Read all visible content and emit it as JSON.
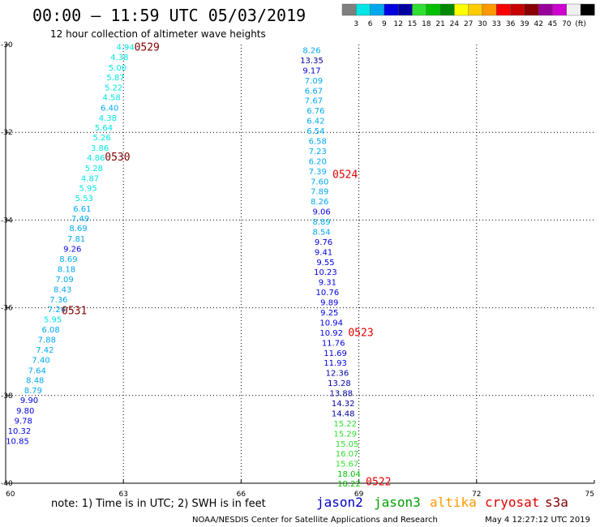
{
  "header": {
    "title": "00:00 – 11:59 UTC 05/03/2019",
    "subtitle": "12 hour collection of altimeter wave heights"
  },
  "color_scale": {
    "colors": [
      "#7f7f7f",
      "#00e5e5",
      "#00a8f0",
      "#0000e0",
      "#0000a0",
      "#30e030",
      "#00c000",
      "#008800",
      "#ffff00",
      "#ffcc00",
      "#ff9900",
      "#ff0000",
      "#c80000",
      "#880000",
      "#990099",
      "#d000d0",
      "#f0f0f0",
      "#000000"
    ],
    "labels": [
      "3",
      "6",
      "9",
      "12",
      "15",
      "18",
      "21",
      "24",
      "27",
      "30",
      "33",
      "36",
      "39",
      "42",
      "45",
      "70",
      "(ft)"
    ]
  },
  "footer": {
    "note": "note:  1) Time is in UTC; 2) SWH is in feet",
    "credit": "NOAA/NESDIS Center for Satellite Applications and Research",
    "timestamp": "May  4 12:27:12 UTC 2019",
    "satellites": [
      {
        "name": "jason2",
        "color": "#0000c8"
      },
      {
        "name": "jason3",
        "color": "#00a000"
      },
      {
        "name": "altika",
        "color": "#ff9900"
      },
      {
        "name": "cryosat",
        "color": "#e00000"
      },
      {
        "name": "s3a",
        "color": "#800000"
      }
    ]
  },
  "chart_data": {
    "type": "scatter",
    "title": "00:00 – 11:59 UTC 05/03/2019",
    "subtitle": "12 hour collection of altimeter wave heights",
    "xlim": [
      60,
      75
    ],
    "ylim": [
      -40,
      -30
    ],
    "x_ticks": [
      "60",
      "63",
      "66",
      "69",
      "72",
      "75"
    ],
    "y_ticks": [
      "-30",
      "-32",
      "-34",
      "-36",
      "-38",
      "-40"
    ],
    "grid": true,
    "passes": [
      {
        "satellite": "s3a",
        "color": "#800000",
        "labels": [
          {
            "text": "0529",
            "lon": 63.6,
            "lat": -30.05
          },
          {
            "text": "0530",
            "lon": 62.85,
            "lat": -32.55
          },
          {
            "text": "0531",
            "lon": 61.75,
            "lat": -36.05
          }
        ],
        "points": [
          {
            "lon": 63.05,
            "lat": -30.05,
            "swh": "4.94"
          },
          {
            "lon": 62.9,
            "lat": -30.28,
            "swh": "4.38"
          },
          {
            "lon": 62.85,
            "lat": -30.52,
            "swh": "5.00"
          },
          {
            "lon": 62.8,
            "lat": -30.74,
            "swh": "5.87"
          },
          {
            "lon": 62.75,
            "lat": -30.97,
            "swh": "5.22"
          },
          {
            "lon": 62.7,
            "lat": -31.19,
            "swh": "4.58"
          },
          {
            "lon": 62.65,
            "lat": -31.43,
            "swh": "6.40"
          },
          {
            "lon": 62.6,
            "lat": -31.66,
            "swh": "4.38"
          },
          {
            "lon": 62.5,
            "lat": -31.89,
            "swh": "5.64"
          },
          {
            "lon": 62.45,
            "lat": -32.11,
            "swh": "5.26"
          },
          {
            "lon": 62.4,
            "lat": -32.35,
            "swh": "3.86"
          },
          {
            "lon": 62.3,
            "lat": -32.57,
            "swh": "4.86"
          },
          {
            "lon": 62.25,
            "lat": -32.81,
            "swh": "5.28"
          },
          {
            "lon": 62.15,
            "lat": -33.04,
            "swh": "4.87"
          },
          {
            "lon": 62.1,
            "lat": -33.26,
            "swh": "5.95"
          },
          {
            "lon": 62.0,
            "lat": -33.49,
            "swh": "5.53"
          },
          {
            "lon": 61.95,
            "lat": -33.73,
            "swh": "6.61"
          },
          {
            "lon": 61.9,
            "lat": -33.96,
            "swh": "7.49"
          },
          {
            "lon": 61.85,
            "lat": -34.18,
            "swh": "8.69"
          },
          {
            "lon": 61.8,
            "lat": -34.42,
            "swh": "7.81"
          },
          {
            "lon": 61.7,
            "lat": -34.65,
            "swh": "9.26"
          },
          {
            "lon": 61.6,
            "lat": -34.88,
            "swh": "8.69"
          },
          {
            "lon": 61.55,
            "lat": -35.11,
            "swh": "8.18"
          },
          {
            "lon": 61.5,
            "lat": -35.34,
            "swh": "7.09"
          },
          {
            "lon": 61.45,
            "lat": -35.57,
            "swh": "8.43"
          },
          {
            "lon": 61.35,
            "lat": -35.8,
            "swh": "7.36"
          },
          {
            "lon": 61.3,
            "lat": -36.03,
            "swh": "7.24"
          },
          {
            "lon": 61.2,
            "lat": -36.26,
            "swh": "5.95"
          },
          {
            "lon": 61.15,
            "lat": -36.49,
            "swh": "6.08"
          },
          {
            "lon": 61.05,
            "lat": -36.72,
            "swh": "7.88"
          },
          {
            "lon": 61.0,
            "lat": -36.95,
            "swh": "7.42"
          },
          {
            "lon": 60.9,
            "lat": -37.18,
            "swh": "7.40"
          },
          {
            "lon": 60.8,
            "lat": -37.42,
            "swh": "7.64"
          },
          {
            "lon": 60.75,
            "lat": -37.64,
            "swh": "8.48"
          },
          {
            "lon": 60.7,
            "lat": -37.87,
            "swh": "8.79"
          },
          {
            "lon": 60.6,
            "lat": -38.1,
            "swh": "9.90"
          },
          {
            "lon": 60.5,
            "lat": -38.34,
            "swh": "9.80"
          },
          {
            "lon": 60.45,
            "lat": -38.57,
            "swh": "9.78"
          },
          {
            "lon": 60.35,
            "lat": -38.8,
            "swh": "10.32"
          },
          {
            "lon": 60.3,
            "lat": -39.03,
            "swh": "10.85"
          }
        ]
      },
      {
        "satellite": "cryosat",
        "color": "#e00000",
        "labels": [
          {
            "text": "0524",
            "lon": 68.65,
            "lat": -32.95
          },
          {
            "text": "0523",
            "lon": 69.05,
            "lat": -36.55
          },
          {
            "text": "0522",
            "lon": 69.5,
            "lat": -39.95
          }
        ],
        "points": [
          {
            "lon": 67.8,
            "lat": -30.12,
            "swh": "8.26"
          },
          {
            "lon": 67.8,
            "lat": -30.35,
            "swh": "13.35"
          },
          {
            "lon": 67.8,
            "lat": -30.58,
            "swh": "9.17"
          },
          {
            "lon": 67.85,
            "lat": -30.81,
            "swh": "7.09"
          },
          {
            "lon": 67.85,
            "lat": -31.04,
            "swh": "6.67"
          },
          {
            "lon": 67.85,
            "lat": -31.27,
            "swh": "7.67"
          },
          {
            "lon": 67.9,
            "lat": -31.5,
            "swh": "6.76"
          },
          {
            "lon": 67.9,
            "lat": -31.73,
            "swh": "6.42"
          },
          {
            "lon": 67.9,
            "lat": -31.96,
            "swh": "6.54"
          },
          {
            "lon": 67.95,
            "lat": -32.19,
            "swh": "6.58"
          },
          {
            "lon": 67.95,
            "lat": -32.42,
            "swh": "7.23"
          },
          {
            "lon": 67.95,
            "lat": -32.65,
            "swh": "6.20"
          },
          {
            "lon": 67.95,
            "lat": -32.88,
            "swh": "7.39"
          },
          {
            "lon": 68.0,
            "lat": -33.11,
            "swh": "7.60"
          },
          {
            "lon": 68.0,
            "lat": -33.34,
            "swh": "7.89"
          },
          {
            "lon": 68.0,
            "lat": -33.57,
            "swh": "8.26"
          },
          {
            "lon": 68.05,
            "lat": -33.8,
            "swh": "9.06"
          },
          {
            "lon": 68.05,
            "lat": -34.03,
            "swh": "8.89"
          },
          {
            "lon": 68.05,
            "lat": -34.26,
            "swh": "8.54"
          },
          {
            "lon": 68.1,
            "lat": -34.49,
            "swh": "9.76"
          },
          {
            "lon": 68.1,
            "lat": -34.72,
            "swh": "9.41"
          },
          {
            "lon": 68.15,
            "lat": -34.95,
            "swh": "9.55"
          },
          {
            "lon": 68.15,
            "lat": -35.18,
            "swh": "10.23"
          },
          {
            "lon": 68.2,
            "lat": -35.41,
            "swh": "9.31"
          },
          {
            "lon": 68.2,
            "lat": -35.64,
            "swh": "10.76"
          },
          {
            "lon": 68.25,
            "lat": -35.87,
            "swh": "9.89"
          },
          {
            "lon": 68.25,
            "lat": -36.1,
            "swh": "9.25"
          },
          {
            "lon": 68.3,
            "lat": -36.33,
            "swh": "10.94"
          },
          {
            "lon": 68.3,
            "lat": -36.56,
            "swh": "10.92"
          },
          {
            "lon": 68.35,
            "lat": -36.79,
            "swh": "11.76"
          },
          {
            "lon": 68.4,
            "lat": -37.02,
            "swh": "11.69"
          },
          {
            "lon": 68.4,
            "lat": -37.25,
            "swh": "11.93"
          },
          {
            "lon": 68.45,
            "lat": -37.48,
            "swh": "12.36"
          },
          {
            "lon": 68.5,
            "lat": -37.71,
            "swh": "13.28"
          },
          {
            "lon": 68.55,
            "lat": -37.94,
            "swh": "13.88"
          },
          {
            "lon": 68.6,
            "lat": -38.17,
            "swh": "14.32"
          },
          {
            "lon": 68.6,
            "lat": -38.4,
            "swh": "14.48"
          },
          {
            "lon": 68.65,
            "lat": -38.63,
            "swh": "15.22"
          },
          {
            "lon": 68.65,
            "lat": -38.86,
            "swh": "15.29"
          },
          {
            "lon": 68.7,
            "lat": -39.09,
            "swh": "15.05"
          },
          {
            "lon": 68.7,
            "lat": -39.32,
            "swh": "16.07"
          },
          {
            "lon": 68.7,
            "lat": -39.55,
            "swh": "15.67"
          },
          {
            "lon": 68.75,
            "lat": -39.78,
            "swh": "18.04"
          },
          {
            "lon": 68.75,
            "lat": -40.0,
            "swh": "18.22"
          }
        ]
      }
    ]
  }
}
